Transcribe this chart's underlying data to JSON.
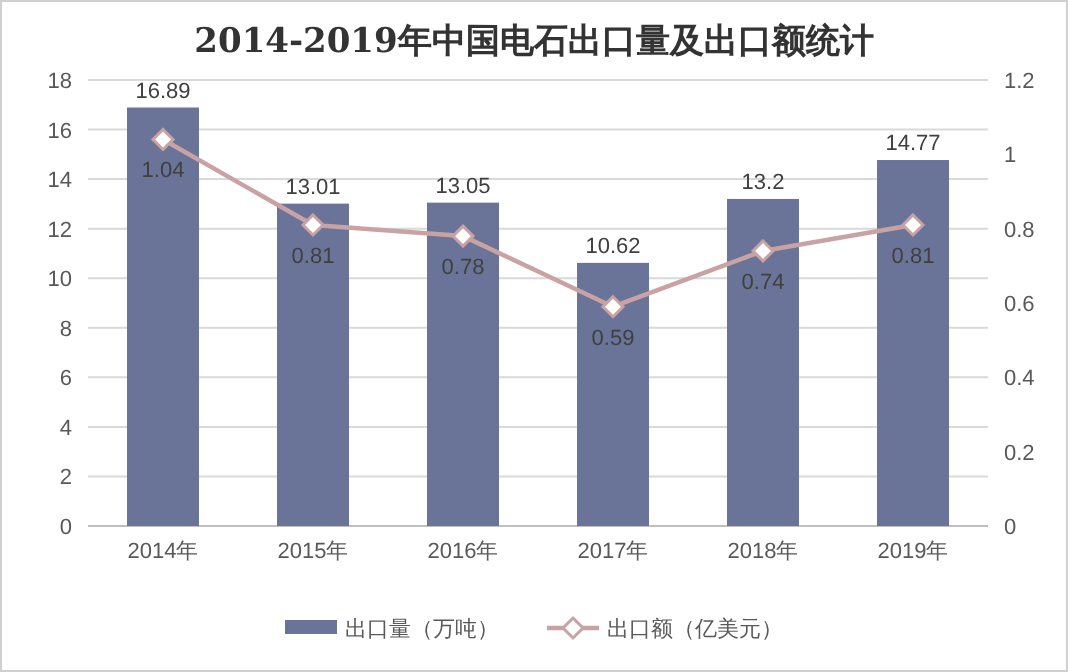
{
  "chart_data": {
    "type": "bar",
    "title": "2014-2019年中国电石出口量及出口额统计",
    "categories": [
      "2014年",
      "2015年",
      "2016年",
      "2017年",
      "2018年",
      "2019年"
    ],
    "series": [
      {
        "name": "出口量（万吨）",
        "color": "#6a7499",
        "values": [
          16.89,
          13.01,
          13.05,
          10.62,
          13.2,
          14.77
        ]
      },
      {
        "name": "出口额（亿美元）",
        "type": "line",
        "axis": "y2",
        "color": "#c9a3a3",
        "values": [
          1.04,
          0.81,
          0.78,
          0.59,
          0.74,
          0.81
        ]
      }
    ],
    "ylim": [
      0,
      18
    ],
    "yticks": [
      0,
      2,
      4,
      6,
      8,
      10,
      12,
      14,
      16,
      18
    ],
    "y2lim": [
      0,
      1.2
    ],
    "y2ticks": [
      0,
      0.2,
      0.4,
      0.6,
      0.8,
      1,
      1.2
    ],
    "grid": "y",
    "legend": "bottom",
    "marker": "diamond",
    "data_labels": true
  }
}
